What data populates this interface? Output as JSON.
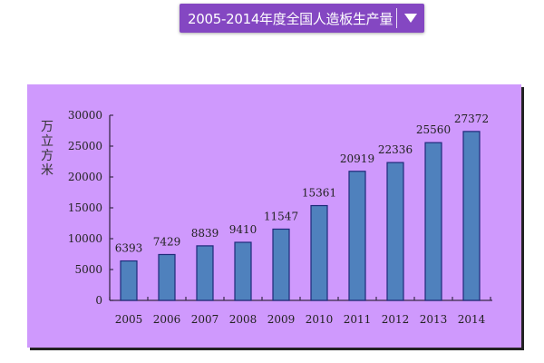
{
  "dropdown": {
    "label": "2005-2014年度全国人造板生产量",
    "icon": "triangle-down-icon"
  },
  "colors": {
    "dropdown_bg": "#8447c2",
    "chart_bg": "#cf99fd",
    "bar_fill": "#4f81bd",
    "bar_stroke": "#1f2a7a",
    "axis": "#3a2a4a"
  },
  "chart_data": {
    "type": "bar",
    "title": "2005-2014年度全国人造板生产量",
    "xlabel": "",
    "ylabel": "万立方米",
    "categories": [
      "2005",
      "2006",
      "2007",
      "2008",
      "2009",
      "2010",
      "2011",
      "2012",
      "2013",
      "2014"
    ],
    "values": [
      6393,
      7429,
      8839,
      9410,
      11547,
      15361,
      20919,
      22336,
      25560,
      27372
    ],
    "data_labels": [
      "6393",
      "7429",
      "8839",
      "9410",
      "11547",
      "15361",
      "20919",
      "22336",
      "25560",
      "27372"
    ],
    "ylim": [
      0,
      30000
    ],
    "yticks": [
      "0",
      "5000",
      "10000",
      "15000",
      "20000",
      "25000",
      "30000"
    ],
    "grid": false,
    "legend": null
  }
}
